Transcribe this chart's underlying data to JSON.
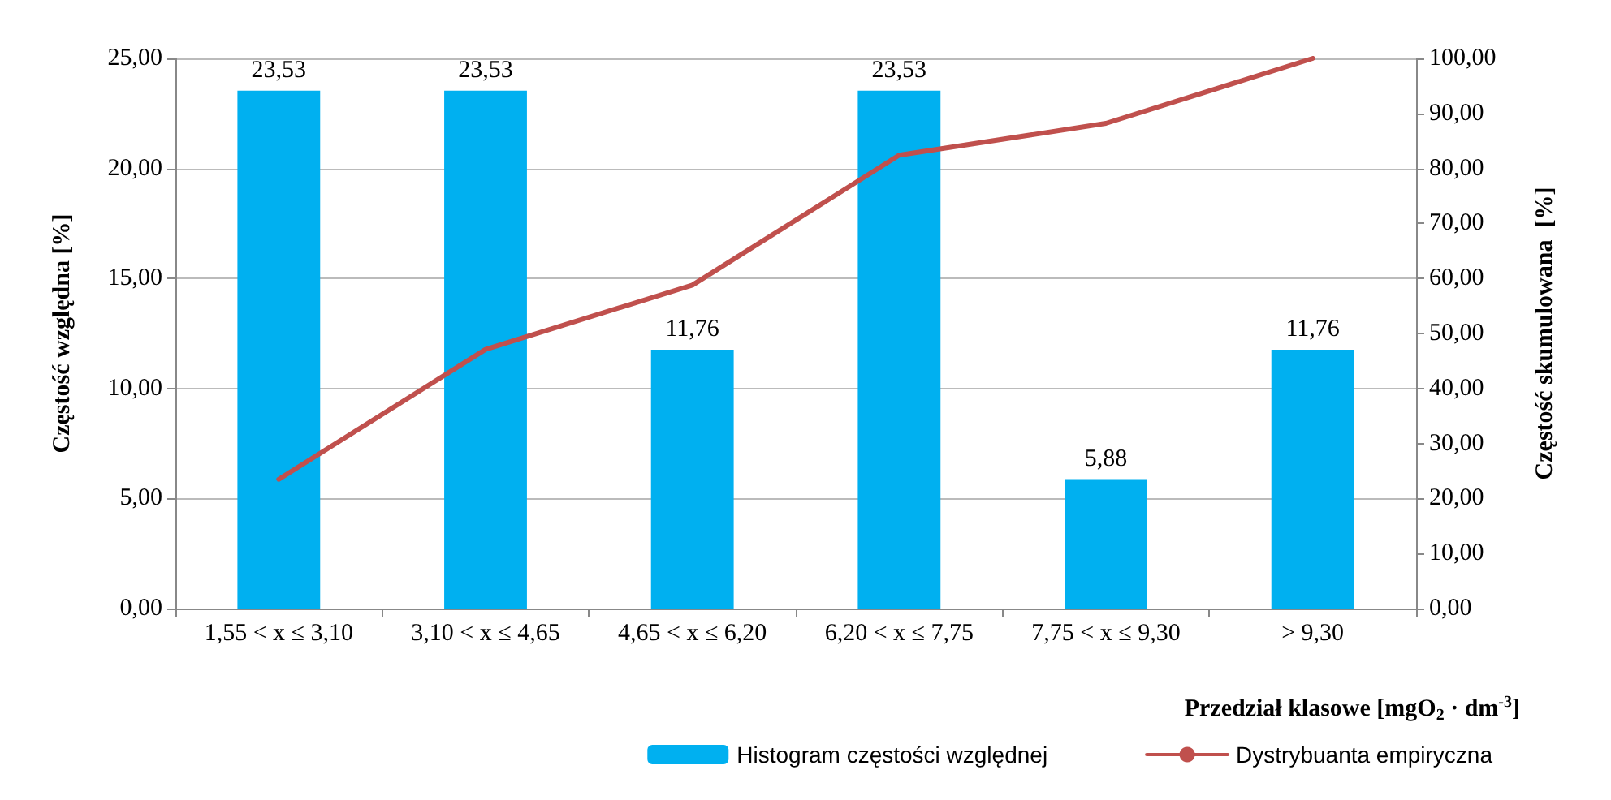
{
  "chart_data": {
    "type": "bar",
    "categories": [
      "1,55 < x ≤ 3,10",
      "3,10 < x ≤ 4,65",
      "4,65 < x ≤ 6,20",
      "6,20 < x ≤ 7,75",
      "7,75 < x ≤ 9,30",
      "> 9,30"
    ],
    "series": [
      {
        "name": "Histogram częstości względnej",
        "color": "#00b0f0",
        "values": [
          23.53,
          23.53,
          11.76,
          23.53,
          5.88,
          11.76
        ],
        "value_labels": [
          "23,53",
          "23,53",
          "11,76",
          "23,53",
          "5,88",
          "11,76"
        ]
      },
      {
        "name": "Dystrybuanta empiryczna",
        "type": "line",
        "axis": "y2",
        "color": "#c0504d",
        "values": [
          23.5,
          47.1,
          58.8,
          82.4,
          88.2,
          100
        ]
      }
    ],
    "xlabel": "Przedział klasowe [mgO$_{2}$ · dm$^{-3}$]",
    "ylabel": "Częstość względna [%]",
    "y2label": "Częstość skumulowana  [%]",
    "ylim": [
      0,
      25
    ],
    "yticks": [
      {
        "value": 0,
        "label": "0,00"
      },
      {
        "value": 5,
        "label": "5,00"
      },
      {
        "value": 10,
        "label": "10,00"
      },
      {
        "value": 15,
        "label": "15,00"
      },
      {
        "value": 20,
        "label": "20,00"
      },
      {
        "value": 25,
        "label": "25,00"
      }
    ],
    "y2lim": [
      0,
      100
    ],
    "y2ticks": [
      {
        "value": 0,
        "label": "0,00"
      },
      {
        "value": 10,
        "label": "10,00"
      },
      {
        "value": 20,
        "label": "20,00"
      },
      {
        "value": 30,
        "label": "30,00"
      },
      {
        "value": 40,
        "label": "40,00"
      },
      {
        "value": 50,
        "label": "50,00"
      },
      {
        "value": 60,
        "label": "60,00"
      },
      {
        "value": 70,
        "label": "70,00"
      },
      {
        "value": 80,
        "label": "80,00"
      },
      {
        "value": 90,
        "label": "90,00"
      },
      {
        "value": 100,
        "label": "100,00"
      }
    ],
    "grid": "y",
    "legend": "bottom right",
    "marker": "none",
    "line_style": "solid"
  }
}
